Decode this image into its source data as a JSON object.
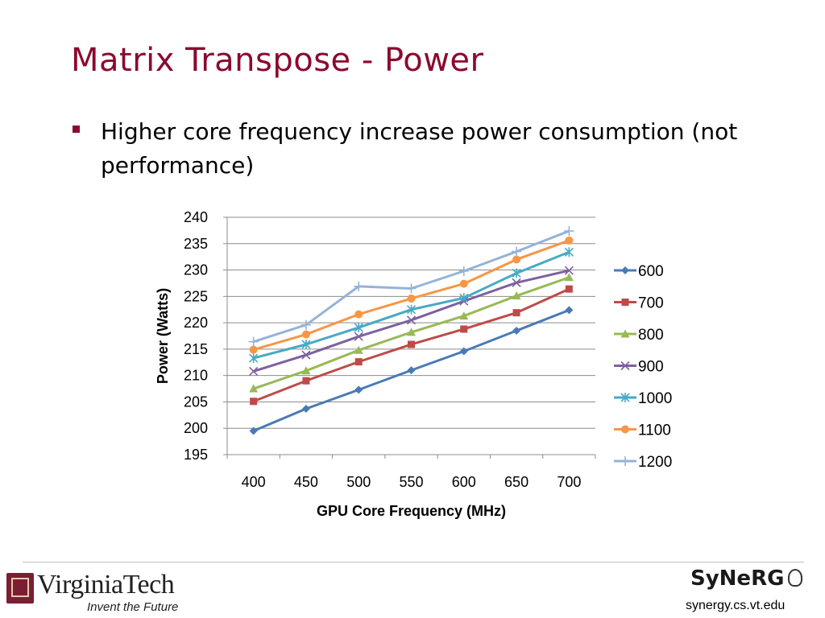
{
  "slide": {
    "title": "Matrix Transpose - Power",
    "bullet": "Higher core frequency increase power consumption (not performance)"
  },
  "colors": {
    "title": "#8b0a2e",
    "bullet": "#8b0a2e"
  },
  "chart_data": {
    "type": "line",
    "title": "",
    "xlabel": "GPU Core Frequency (MHz)",
    "ylabel": "Power (Watts)",
    "categories": [
      "400",
      "450",
      "500",
      "550",
      "600",
      "650",
      "700"
    ],
    "ylim": [
      195,
      240
    ],
    "yticks": [
      195,
      200,
      205,
      210,
      215,
      220,
      225,
      230,
      235,
      240
    ],
    "grid": "horizontal",
    "legend": "right",
    "series": [
      {
        "name": "600",
        "color": "#4a7ab5",
        "marker": "diamond",
        "values": [
          199.5,
          203.7,
          207.3,
          211.0,
          214.6,
          218.5,
          222.4
        ]
      },
      {
        "name": "700",
        "color": "#be4b48",
        "marker": "square",
        "values": [
          205.1,
          209.0,
          212.6,
          215.9,
          218.8,
          221.9,
          226.4
        ]
      },
      {
        "name": "800",
        "color": "#98b954",
        "marker": "triangle",
        "values": [
          207.5,
          210.9,
          214.8,
          218.2,
          221.3,
          225.1,
          228.6
        ]
      },
      {
        "name": "900",
        "color": "#7d60a0",
        "marker": "x",
        "values": [
          210.8,
          213.9,
          217.4,
          220.5,
          224.1,
          227.6,
          229.9
        ]
      },
      {
        "name": "1000",
        "color": "#46aac5",
        "marker": "asterisk",
        "values": [
          213.3,
          215.9,
          219.1,
          222.5,
          224.7,
          229.4,
          233.4
        ]
      },
      {
        "name": "1100",
        "color": "#f79646",
        "marker": "circle",
        "values": [
          214.9,
          217.8,
          221.6,
          224.6,
          227.4,
          232.0,
          235.6
        ]
      },
      {
        "name": "1200",
        "color": "#95b3d7",
        "marker": "plus",
        "values": [
          216.4,
          219.6,
          226.9,
          226.5,
          229.8,
          233.5,
          237.4
        ]
      }
    ]
  },
  "footer": {
    "vt_name": "VirginiaTech",
    "vt_tagline": "Invent the Future",
    "synergy_logo": "SyNeRG",
    "synergy_url": "synergy.cs.vt.edu"
  }
}
